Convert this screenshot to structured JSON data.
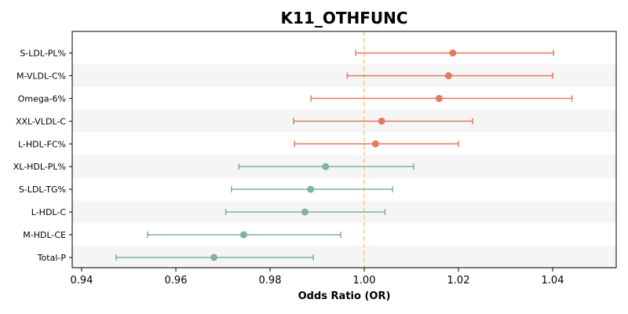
{
  "chart_data": {
    "type": "forest",
    "title": "K11_OTHFUNC",
    "xlabel": "Odds Ratio (OR)",
    "ylabel": "",
    "xlim": [
      0.938,
      1.0535
    ],
    "xticks": [
      "0.94",
      "0.96",
      "0.98",
      "1.00",
      "1.02",
      "1.04"
    ],
    "reference_line": 1.0,
    "grid": false,
    "colors": {
      "positive": "#E07B5F",
      "negative": "#81B29A",
      "reference": "#F2CC8F",
      "band": "#F5F5F5"
    },
    "rows": [
      {
        "label": "S-LDL-PL%",
        "or": 1.0188,
        "lower": 0.9982,
        "upper": 1.0402
      },
      {
        "label": "M-VLDL-C%",
        "or": 1.0179,
        "lower": 0.9964,
        "upper": 1.04
      },
      {
        "label": "Omega-6%",
        "or": 1.0159,
        "lower": 0.9887,
        "upper": 1.0441
      },
      {
        "label": "XXL-VLDL-C",
        "or": 1.0037,
        "lower": 0.985,
        "upper": 1.023
      },
      {
        "label": "L-HDL-FC%",
        "or": 1.0024,
        "lower": 0.9852,
        "upper": 1.02
      },
      {
        "label": "XL-HDL-PL%",
        "or": 0.9918,
        "lower": 0.9734,
        "upper": 1.0105
      },
      {
        "label": "S-LDL-TG%",
        "or": 0.9886,
        "lower": 0.9718,
        "upper": 1.006
      },
      {
        "label": "L-HDL-C",
        "or": 0.9874,
        "lower": 0.9706,
        "upper": 1.0044
      },
      {
        "label": "M-HDL-CE",
        "or": 0.9744,
        "lower": 0.954,
        "upper": 0.995
      },
      {
        "label": "Total-P",
        "or": 0.9681,
        "lower": 0.9473,
        "upper": 0.9892
      }
    ]
  }
}
